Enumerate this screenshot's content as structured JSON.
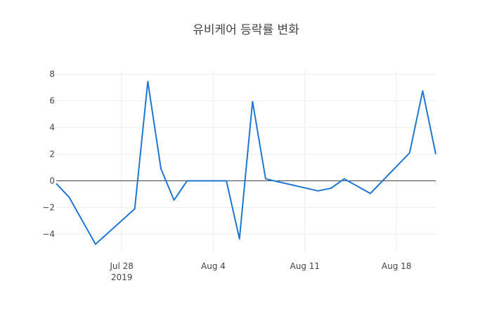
{
  "chart_data": {
    "type": "line",
    "title": "유비케어 등락률 변화",
    "xlabel": "",
    "ylabel": "",
    "x_axis": {
      "type": "date",
      "range": [
        "2019-07-23",
        "2019-08-21"
      ],
      "ticks": [
        {
          "value": "2019-07-28",
          "label": "Jul 28",
          "sublabel": "2019"
        },
        {
          "value": "2019-08-04",
          "label": "Aug 4",
          "sublabel": ""
        },
        {
          "value": "2019-08-11",
          "label": "Aug 11",
          "sublabel": ""
        },
        {
          "value": "2019-08-18",
          "label": "Aug 18",
          "sublabel": ""
        }
      ]
    },
    "y_axis": {
      "range": [
        -5.4,
        8.3
      ],
      "ticks": [
        -4,
        -2,
        0,
        2,
        4,
        6,
        8
      ],
      "tick_labels": [
        "−4",
        "−2",
        "0",
        "2",
        "4",
        "6",
        "8"
      ],
      "zeroline": true
    },
    "grid": true,
    "legend": "none",
    "series": [
      {
        "color": "#1f77d4",
        "points": [
          {
            "x": "2019-07-23",
            "y": -0.2
          },
          {
            "x": "2019-07-24",
            "y": -1.25
          },
          {
            "x": "2019-07-26",
            "y": -4.75
          },
          {
            "x": "2019-07-29",
            "y": -2.1
          },
          {
            "x": "2019-07-30",
            "y": 7.45
          },
          {
            "x": "2019-07-31",
            "y": 0.9
          },
          {
            "x": "2019-08-01",
            "y": -1.45
          },
          {
            "x": "2019-08-02",
            "y": 0.0
          },
          {
            "x": "2019-08-05",
            "y": 0.0
          },
          {
            "x": "2019-08-06",
            "y": -4.35
          },
          {
            "x": "2019-08-07",
            "y": 5.95
          },
          {
            "x": "2019-08-08",
            "y": 0.15
          },
          {
            "x": "2019-08-12",
            "y": -0.75
          },
          {
            "x": "2019-08-13",
            "y": -0.55
          },
          {
            "x": "2019-08-14",
            "y": 0.15
          },
          {
            "x": "2019-08-16",
            "y": -0.95
          },
          {
            "x": "2019-08-19",
            "y": 2.1
          },
          {
            "x": "2019-08-20",
            "y": 6.75
          },
          {
            "x": "2019-08-21",
            "y": 2.0
          }
        ]
      }
    ]
  }
}
